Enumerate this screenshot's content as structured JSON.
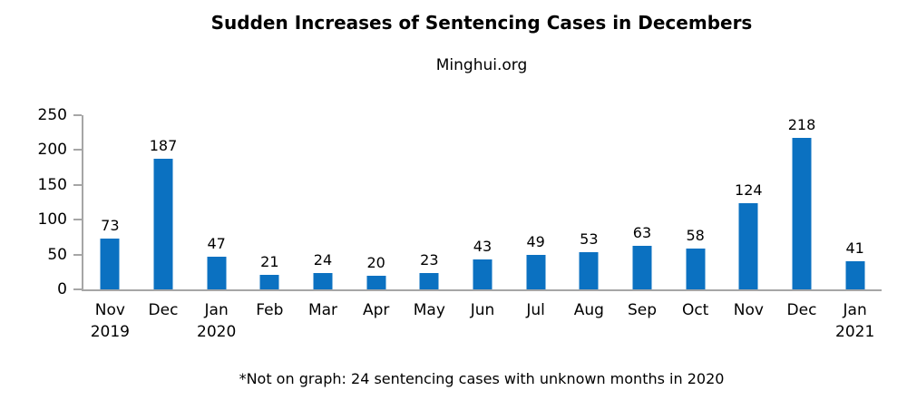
{
  "header": {
    "title": "Sudden Increases of Sentencing Cases in Decembers",
    "subtitle": "Minghui.org"
  },
  "footnote": "*Not on graph: 24 sentencing cases with unknown months in 2020",
  "chart_data": {
    "type": "bar",
    "title": "Sudden Increases of Sentencing Cases in Decembers",
    "subtitle": "Minghui.org",
    "categories": [
      "Nov 2019",
      "Dec",
      "Jan 2020",
      "Feb",
      "Mar",
      "Apr",
      "May",
      "Jun",
      "Jul",
      "Aug",
      "Sep",
      "Oct",
      "Nov",
      "Dec",
      "Jan 2021"
    ],
    "category_lines": [
      [
        "Nov",
        "2019"
      ],
      [
        "Dec"
      ],
      [
        "Jan",
        "2020"
      ],
      [
        "Feb"
      ],
      [
        "Mar"
      ],
      [
        "Apr"
      ],
      [
        "May"
      ],
      [
        "Jun"
      ],
      [
        "Jul"
      ],
      [
        "Aug"
      ],
      [
        "Sep"
      ],
      [
        "Oct"
      ],
      [
        "Nov"
      ],
      [
        "Dec"
      ],
      [
        "Jan",
        "2021"
      ]
    ],
    "values": [
      73,
      187,
      47,
      21,
      24,
      20,
      23,
      43,
      49,
      53,
      63,
      58,
      124,
      218,
      41
    ],
    "data_labels": true,
    "xlabel": "",
    "ylabel": "",
    "ylim": [
      0,
      250
    ],
    "yticks": [
      0,
      50,
      100,
      150,
      200,
      250
    ],
    "grid": false,
    "legend": null,
    "footnote": "*Not on graph: 24 sentencing cases with unknown months in 2020",
    "colors": {
      "bar": "#0b71c1",
      "axis": "#a6a6a6",
      "text": "#000000",
      "background": "#ffffff"
    }
  }
}
